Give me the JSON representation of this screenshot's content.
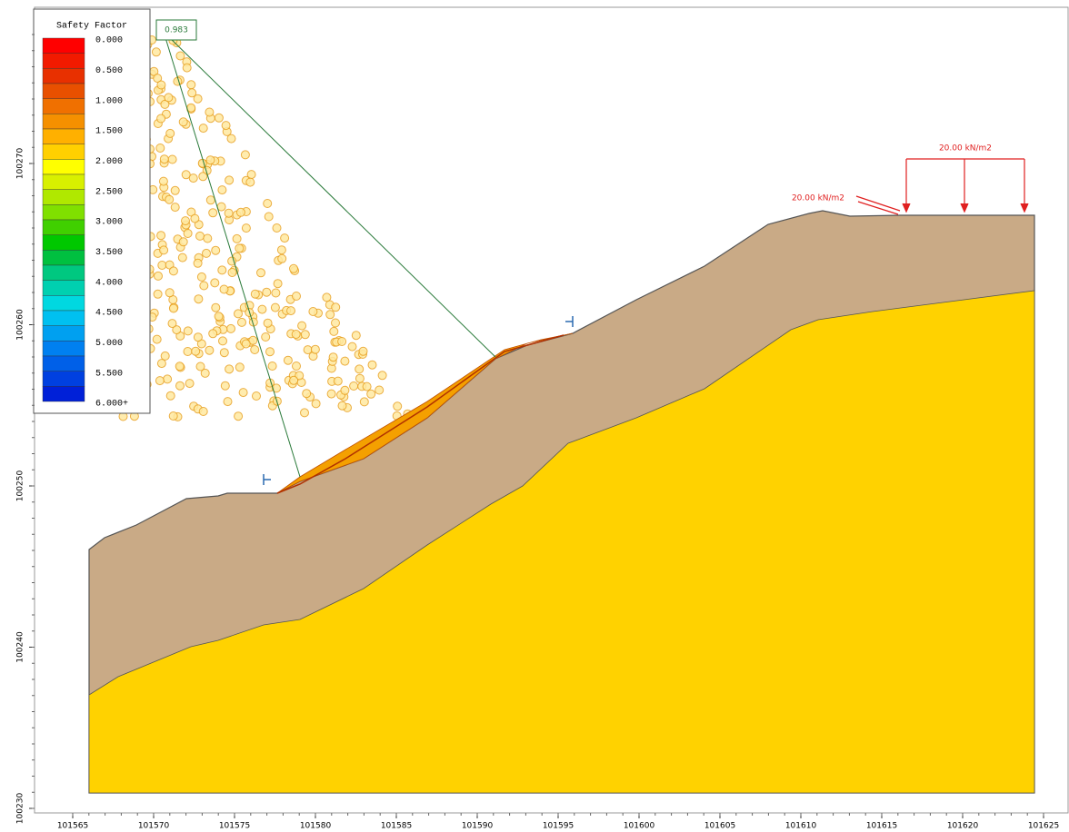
{
  "legend": {
    "title": "Safety Factor",
    "labels": [
      "0.000",
      "0.500",
      "1.000",
      "1.500",
      "2.000",
      "2.500",
      "3.000",
      "3.500",
      "4.000",
      "4.500",
      "5.000",
      "5.500",
      "6.000+"
    ]
  },
  "min_factor": "0.983",
  "loads": [
    "20.00 kN/m2",
    "20.00 kN/m2"
  ],
  "x_axis": {
    "ticks": [
      "101565",
      "101570",
      "101575",
      "101580",
      "101585",
      "101590",
      "101595",
      "101600",
      "101605",
      "101610",
      "101615",
      "101620",
      "101625"
    ]
  },
  "y_axis": {
    "ticks": [
      "100230",
      "100240",
      "100250",
      "100260",
      "100270"
    ]
  }
}
